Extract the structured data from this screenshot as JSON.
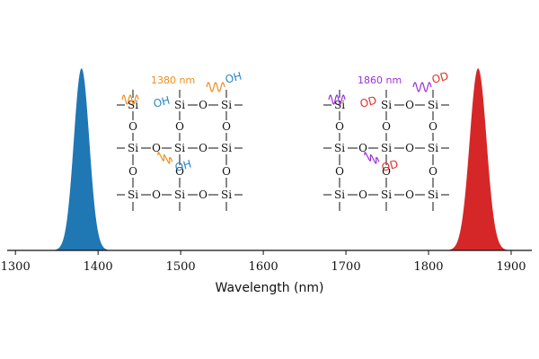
{
  "chart_data": {
    "type": "area",
    "xlabel": "Wavelength (nm)",
    "ylabel": "",
    "xlim": [
      1290,
      1925
    ],
    "ylim": [
      0,
      1.05
    ],
    "x_ticks": [
      "1300",
      "1400",
      "1500",
      "1600",
      "1700",
      "1800",
      "1900"
    ],
    "grid": false,
    "series": [
      {
        "center": 1380,
        "fwhm": 22,
        "peak": 1.0,
        "color": "#1f77b4"
      },
      {
        "center": 1860,
        "fwhm": 24,
        "peak": 1.0,
        "color": "#d62728"
      }
    ],
    "annotations": {
      "left_label": "1380 nm",
      "left_color": "#f28c1c",
      "left_group": "OH",
      "left_group_color": "#2a86c7",
      "right_label": "1860 nm",
      "right_color": "#9b30d9",
      "right_group": "OD",
      "right_group_color": "#e0312a",
      "si": "Si",
      "o": "O"
    }
  }
}
